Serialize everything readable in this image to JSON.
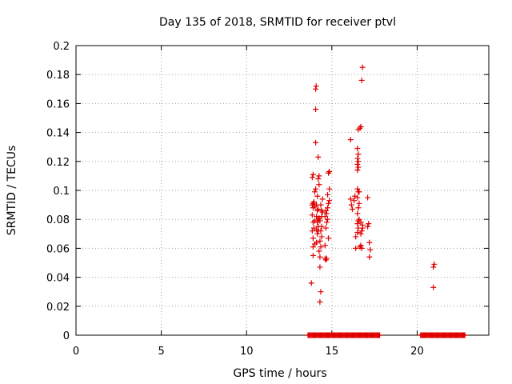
{
  "chart_data": {
    "type": "scatter",
    "title": "Day 135 of 2018, SRMTID for receiver ptvl",
    "xlabel": "GPS time / hours",
    "ylabel": "SRMTID / TECUs",
    "xlim": [
      0,
      24.2
    ],
    "ylim": [
      0,
      0.2
    ],
    "xticks": [
      0,
      5,
      10,
      15,
      20
    ],
    "xtick_labels": [
      "0",
      "5",
      "10",
      "15",
      "20"
    ],
    "yticks": [
      0,
      0.02,
      0.04,
      0.06,
      0.08,
      0.1,
      0.12,
      0.14,
      0.16,
      0.18,
      0.2
    ],
    "ytick_labels": [
      "0",
      "0.02",
      "0.04",
      "0.06",
      "0.08",
      "0.1",
      "0.12",
      "0.14",
      "0.16",
      "0.18",
      "0.2"
    ],
    "grid": true,
    "marker": "+",
    "color": "#e00000",
    "series": [
      {
        "name": "SRMTID",
        "points": [
          [
            13.8,
            0.036
          ],
          [
            13.9,
            0.055
          ],
          [
            13.9,
            0.061
          ],
          [
            13.9,
            0.067
          ],
          [
            13.85,
            0.072
          ],
          [
            13.95,
            0.074
          ],
          [
            13.9,
            0.078
          ],
          [
            14.0,
            0.079
          ],
          [
            13.85,
            0.083
          ],
          [
            13.9,
            0.088
          ],
          [
            14.0,
            0.089
          ],
          [
            13.85,
            0.09
          ],
          [
            13.9,
            0.091
          ],
          [
            13.95,
            0.092
          ],
          [
            14.0,
            0.099
          ],
          [
            14.05,
            0.101
          ],
          [
            13.85,
            0.109
          ],
          [
            13.9,
            0.111
          ],
          [
            14.05,
            0.133
          ],
          [
            14.05,
            0.156
          ],
          [
            14.05,
            0.17
          ],
          [
            14.08,
            0.172
          ],
          [
            14.0,
            0.063
          ],
          [
            14.1,
            0.064
          ],
          [
            14.15,
            0.07
          ],
          [
            14.2,
            0.072
          ],
          [
            14.1,
            0.073
          ],
          [
            14.2,
            0.075
          ],
          [
            14.15,
            0.078
          ],
          [
            14.2,
            0.08
          ],
          [
            14.25,
            0.081
          ],
          [
            14.1,
            0.082
          ],
          [
            14.15,
            0.086
          ],
          [
            14.2,
            0.087
          ],
          [
            14.1,
            0.09
          ],
          [
            14.15,
            0.096
          ],
          [
            14.25,
            0.104
          ],
          [
            14.2,
            0.108
          ],
          [
            14.25,
            0.11
          ],
          [
            14.2,
            0.123
          ],
          [
            14.3,
            0.023
          ],
          [
            14.35,
            0.03
          ],
          [
            14.3,
            0.047
          ],
          [
            14.3,
            0.054
          ],
          [
            14.25,
            0.058
          ],
          [
            14.35,
            0.061
          ],
          [
            14.3,
            0.065
          ],
          [
            14.4,
            0.068
          ],
          [
            14.35,
            0.072
          ],
          [
            14.4,
            0.075
          ],
          [
            14.3,
            0.079
          ],
          [
            14.4,
            0.082
          ],
          [
            14.45,
            0.085
          ],
          [
            14.4,
            0.086
          ],
          [
            14.35,
            0.09
          ],
          [
            14.45,
            0.094
          ],
          [
            14.6,
            0.053
          ],
          [
            14.65,
            0.052
          ],
          [
            14.7,
            0.053
          ],
          [
            14.6,
            0.062
          ],
          [
            14.65,
            0.074
          ],
          [
            14.7,
            0.078
          ],
          [
            14.75,
            0.08
          ],
          [
            14.6,
            0.082
          ],
          [
            14.7,
            0.084
          ],
          [
            14.65,
            0.086
          ],
          [
            14.8,
            0.067
          ],
          [
            14.75,
            0.088
          ],
          [
            14.8,
            0.091
          ],
          [
            14.85,
            0.093
          ],
          [
            14.75,
            0.097
          ],
          [
            14.85,
            0.101
          ],
          [
            14.8,
            0.112
          ],
          [
            14.85,
            0.113
          ],
          [
            16.1,
            0.135
          ],
          [
            16.1,
            0.094
          ],
          [
            16.15,
            0.09
          ],
          [
            16.2,
            0.087
          ],
          [
            16.3,
            0.093
          ],
          [
            16.35,
            0.096
          ],
          [
            16.4,
            0.06
          ],
          [
            16.4,
            0.068
          ],
          [
            16.5,
            0.071
          ],
          [
            16.55,
            0.074
          ],
          [
            16.5,
            0.077
          ],
          [
            16.55,
            0.079
          ],
          [
            16.6,
            0.08
          ],
          [
            16.5,
            0.084
          ],
          [
            16.55,
            0.088
          ],
          [
            16.6,
            0.091
          ],
          [
            16.5,
            0.095
          ],
          [
            16.55,
            0.099
          ],
          [
            16.5,
            0.101
          ],
          [
            16.6,
            0.099
          ],
          [
            16.5,
            0.114
          ],
          [
            16.55,
            0.116
          ],
          [
            16.5,
            0.118
          ],
          [
            16.55,
            0.12
          ],
          [
            16.5,
            0.122
          ],
          [
            16.55,
            0.125
          ],
          [
            16.5,
            0.129
          ],
          [
            16.55,
            0.142
          ],
          [
            16.65,
            0.143
          ],
          [
            16.7,
            0.144
          ],
          [
            16.65,
            0.061
          ],
          [
            16.7,
            0.062
          ],
          [
            16.75,
            0.06
          ],
          [
            16.7,
            0.07
          ],
          [
            16.75,
            0.072
          ],
          [
            16.8,
            0.074
          ],
          [
            16.7,
            0.078
          ],
          [
            16.8,
            0.076
          ],
          [
            16.75,
            0.176
          ],
          [
            16.8,
            0.185
          ],
          [
            17.1,
            0.095
          ],
          [
            17.15,
            0.077
          ],
          [
            17.1,
            0.075
          ],
          [
            17.2,
            0.064
          ],
          [
            17.25,
            0.059
          ],
          [
            17.2,
            0.054
          ],
          [
            20.95,
            0.033
          ],
          [
            20.95,
            0.047
          ],
          [
            21.0,
            0.049
          ]
        ],
        "zero_ranges": [
          [
            13.6,
            17.8
          ],
          [
            20.2,
            22.8
          ]
        ]
      }
    ]
  }
}
